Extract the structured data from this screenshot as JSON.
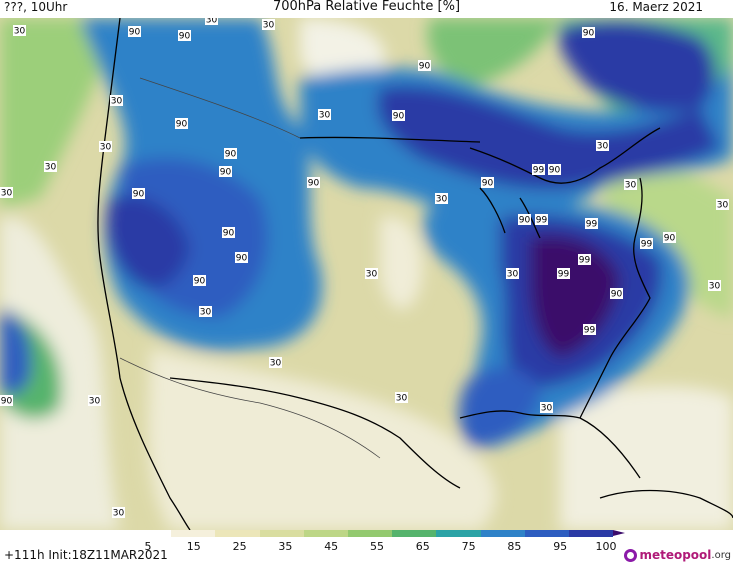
{
  "header": {
    "title": "700hPa Relative Feuchte [%]",
    "left_text": "???, 10Uhr",
    "date": "16. Maerz 2021"
  },
  "map": {
    "labels": [
      {
        "text": "30"
      },
      {
        "text": "90"
      },
      {
        "text": "90"
      },
      {
        "text": "30"
      },
      {
        "text": "30"
      },
      {
        "text": "90"
      },
      {
        "text": "90"
      },
      {
        "text": "30"
      },
      {
        "text": "30"
      },
      {
        "text": "90"
      },
      {
        "text": "30"
      },
      {
        "text": "90"
      },
      {
        "text": "90"
      },
      {
        "text": "90"
      },
      {
        "text": "90"
      },
      {
        "text": "99"
      },
      {
        "text": "90"
      },
      {
        "text": "30"
      },
      {
        "text": "90"
      },
      {
        "text": "30"
      },
      {
        "text": "30"
      },
      {
        "text": "90"
      },
      {
        "text": "90"
      },
      {
        "text": "90"
      },
      {
        "text": "30"
      },
      {
        "text": "90"
      },
      {
        "text": "99"
      },
      {
        "text": "99"
      },
      {
        "text": "90"
      },
      {
        "text": "99"
      },
      {
        "text": "30"
      },
      {
        "text": "99"
      },
      {
        "text": "99"
      },
      {
        "text": "90"
      },
      {
        "text": "99"
      },
      {
        "text": "30"
      },
      {
        "text": "90"
      },
      {
        "text": "90"
      },
      {
        "text": "30"
      },
      {
        "text": "30"
      },
      {
        "text": "90"
      },
      {
        "text": "30"
      },
      {
        "text": "30"
      },
      {
        "text": "30"
      },
      {
        "text": "30"
      },
      {
        "text": "30"
      },
      {
        "text": "30"
      },
      {
        "text": "30"
      }
    ]
  },
  "colorbar": {
    "ticks": [
      "5",
      "15",
      "25",
      "35",
      "45",
      "55",
      "65",
      "75",
      "85",
      "95",
      "100"
    ],
    "colors": [
      "#ffffff",
      "#f5f0dc",
      "#ece6b9",
      "#d9dda0",
      "#bdd686",
      "#93c96f",
      "#56b46d",
      "#2ca3a6",
      "#2f82c8",
      "#2d5dc0",
      "#2b3aa5",
      "#3b0a6b"
    ]
  },
  "footer": {
    "init_text": "+111h  Init:18Z11MAR2021",
    "logo_main": "meteopool",
    "logo_suffix": ".org"
  }
}
